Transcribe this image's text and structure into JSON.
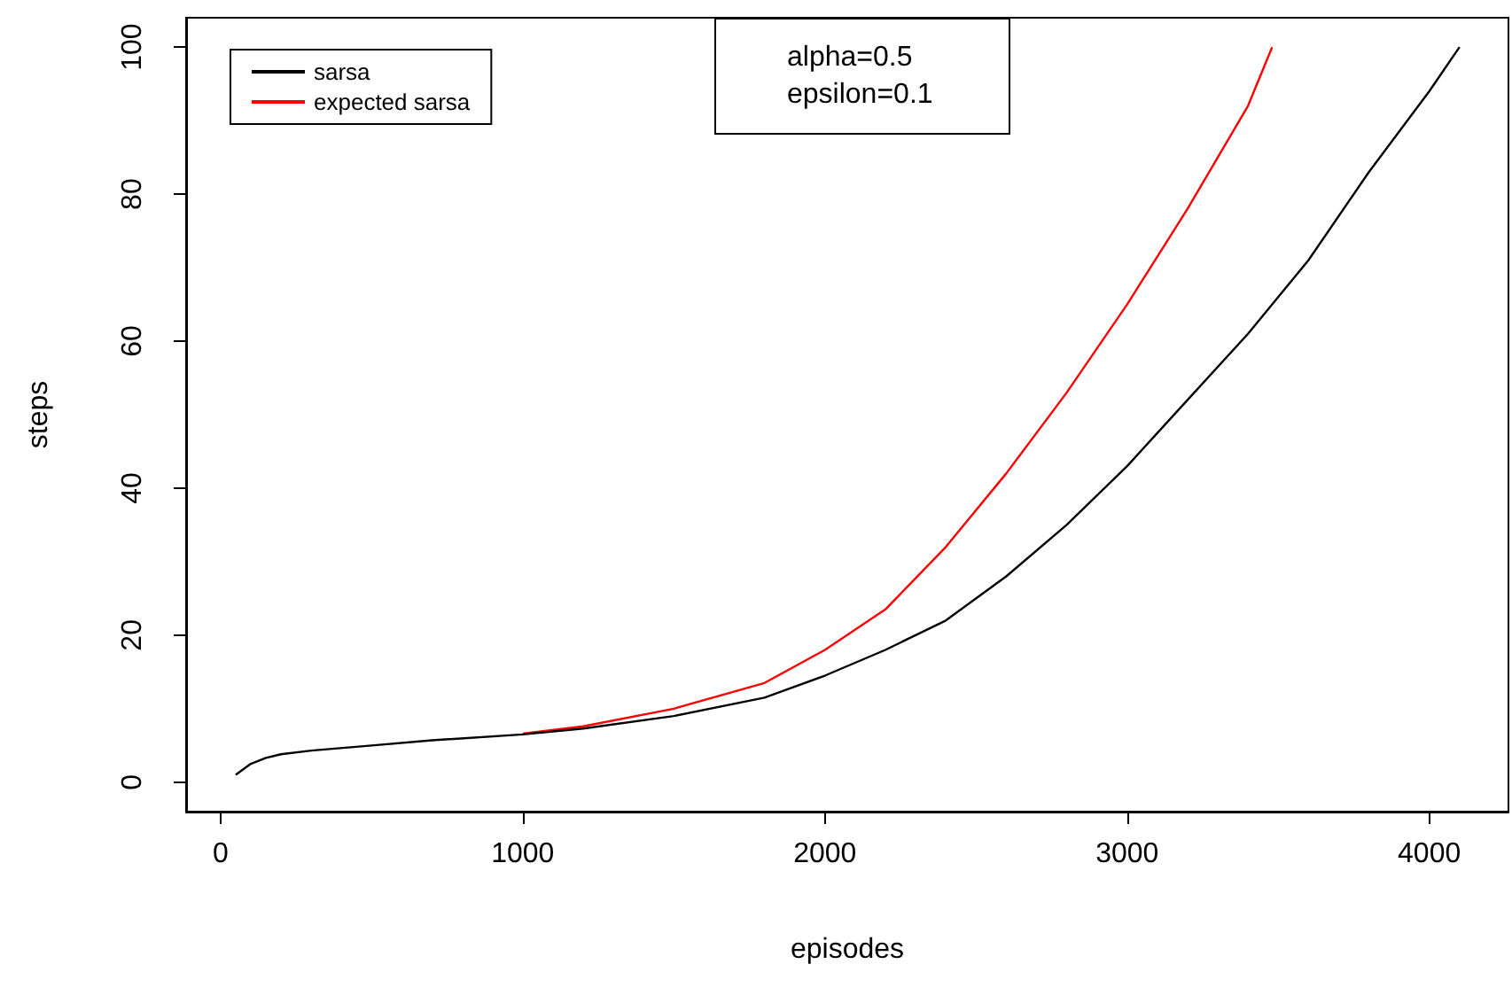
{
  "chart_data": {
    "type": "line",
    "xlabel": "episodes",
    "ylabel": "steps",
    "annotations": [
      "alpha=0.5",
      "epsilon=0.1"
    ],
    "xlim": [
      -114,
      4262
    ],
    "ylim": [
      -4,
      104
    ],
    "xticks": [
      0,
      1000,
      2000,
      3000,
      4000
    ],
    "yticks": [
      0,
      20,
      40,
      60,
      80,
      100
    ],
    "grid": false,
    "legend": "top left",
    "marker": "none",
    "line_style": "solid",
    "series": [
      {
        "name": "sarsa",
        "color": "#000000",
        "x": [
          50,
          100,
          150,
          200,
          300,
          500,
          700,
          1000,
          1200,
          1500,
          1800,
          2000,
          2200,
          2400,
          2600,
          2800,
          3000,
          3200,
          3400,
          3600,
          3800,
          4000,
          4100
        ],
        "values": [
          1,
          2.5,
          3.3,
          3.8,
          4.3,
          5,
          5.7,
          6.5,
          7.3,
          9,
          11.5,
          14.5,
          18,
          22,
          28,
          35,
          43,
          52,
          61,
          71,
          83,
          94,
          100
        ]
      },
      {
        "name": "expected sarsa",
        "color": "#ff0000",
        "x": [
          1000,
          1200,
          1500,
          1800,
          2000,
          2200,
          2400,
          2600,
          2800,
          3000,
          3200,
          3400,
          3480
        ],
        "values": [
          6.6,
          7.6,
          10,
          13.5,
          18,
          23.5,
          32,
          42,
          53,
          65,
          78,
          92,
          100
        ]
      }
    ]
  }
}
